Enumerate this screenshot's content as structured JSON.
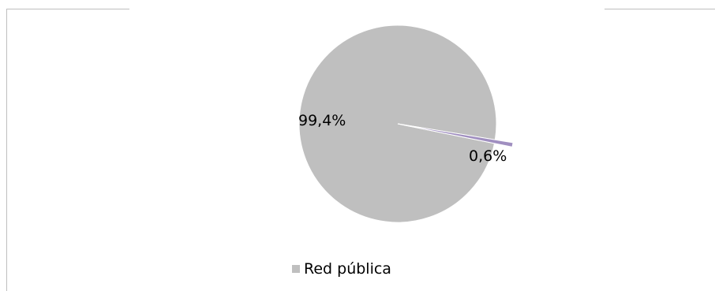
{
  "chart_data": {
    "type": "pie",
    "title": "",
    "slices": [
      {
        "label": "Red pública",
        "value": 99.4,
        "display": "99,4%",
        "color": "#bfbfbf"
      },
      {
        "label": "",
        "value": 0.6,
        "display": "0,6%",
        "color": "#a08fc0"
      }
    ],
    "legend": {
      "position": "bottom",
      "entries": [
        {
          "label": "Red pública",
          "color": "#bfbfbf"
        }
      ]
    }
  }
}
